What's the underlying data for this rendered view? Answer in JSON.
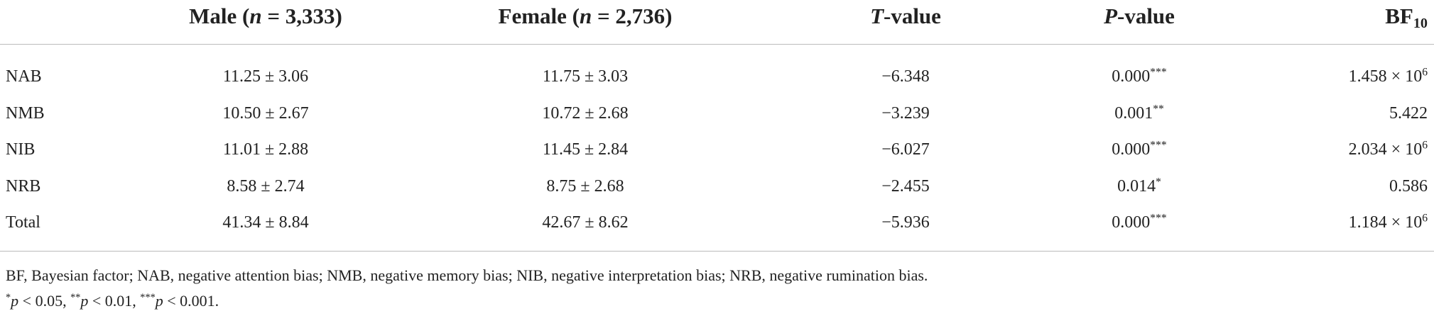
{
  "table": {
    "header": [
      "",
      [
        {
          "t": "Male ("
        },
        {
          "t": "n",
          "s": "i"
        },
        {
          "t": " = 3,333)"
        }
      ],
      [
        {
          "t": "Female ("
        },
        {
          "t": "n",
          "s": "i"
        },
        {
          "t": " = 2,736)"
        }
      ],
      [
        {
          "t": "T",
          "s": "i"
        },
        {
          "t": "-value"
        }
      ],
      [
        {
          "t": "P",
          "s": "i"
        },
        {
          "t": "-value"
        }
      ],
      [
        {
          "t": "BF"
        },
        {
          "t": "10",
          "s": "sub"
        }
      ]
    ],
    "rows": [
      [
        "NAB",
        "11.25 ± 3.06",
        "11.75 ± 3.03",
        "−6.348",
        [
          {
            "t": "0.000"
          },
          {
            "t": "***",
            "s": "sup"
          }
        ],
        [
          {
            "t": "1.458 × 10"
          },
          {
            "t": "6",
            "s": "sup"
          }
        ]
      ],
      [
        "NMB",
        "10.50 ± 2.67",
        "10.72 ± 2.68",
        "−3.239",
        [
          {
            "t": "0.001"
          },
          {
            "t": "**",
            "s": "sup"
          }
        ],
        "5.422"
      ],
      [
        "NIB",
        "11.01 ± 2.88",
        "11.45 ± 2.84",
        "−6.027",
        [
          {
            "t": "0.000"
          },
          {
            "t": "***",
            "s": "sup"
          }
        ],
        [
          {
            "t": "2.034 × 10"
          },
          {
            "t": "6",
            "s": "sup"
          }
        ]
      ],
      [
        "NRB",
        "8.58 ± 2.74",
        "8.75 ± 2.68",
        "−2.455",
        [
          {
            "t": "0.014"
          },
          {
            "t": "*",
            "s": "sup"
          }
        ],
        "0.586"
      ],
      [
        "Total",
        "41.34 ± 8.84",
        "42.67 ± 8.62",
        "−5.936",
        [
          {
            "t": "0.000"
          },
          {
            "t": "***",
            "s": "sup"
          }
        ],
        [
          {
            "t": "1.184 × 10"
          },
          {
            "t": "6",
            "s": "sup"
          }
        ]
      ]
    ]
  },
  "footnotes": [
    "BF, Bayesian factor; NAB, negative attention bias; NMB, negative memory bias; NIB, negative interpretation bias; NRB, negative rumination bias.",
    [
      {
        "t": "*",
        "s": "sup"
      },
      {
        "t": "p",
        "s": "i"
      },
      {
        "t": " < 0.05, "
      },
      {
        "t": "**",
        "s": "sup"
      },
      {
        "t": "p",
        "s": "i"
      },
      {
        "t": " < 0.01, "
      },
      {
        "t": "***",
        "s": "sup"
      },
      {
        "t": "p",
        "s": "i"
      },
      {
        "t": " < 0.001."
      }
    ]
  ]
}
